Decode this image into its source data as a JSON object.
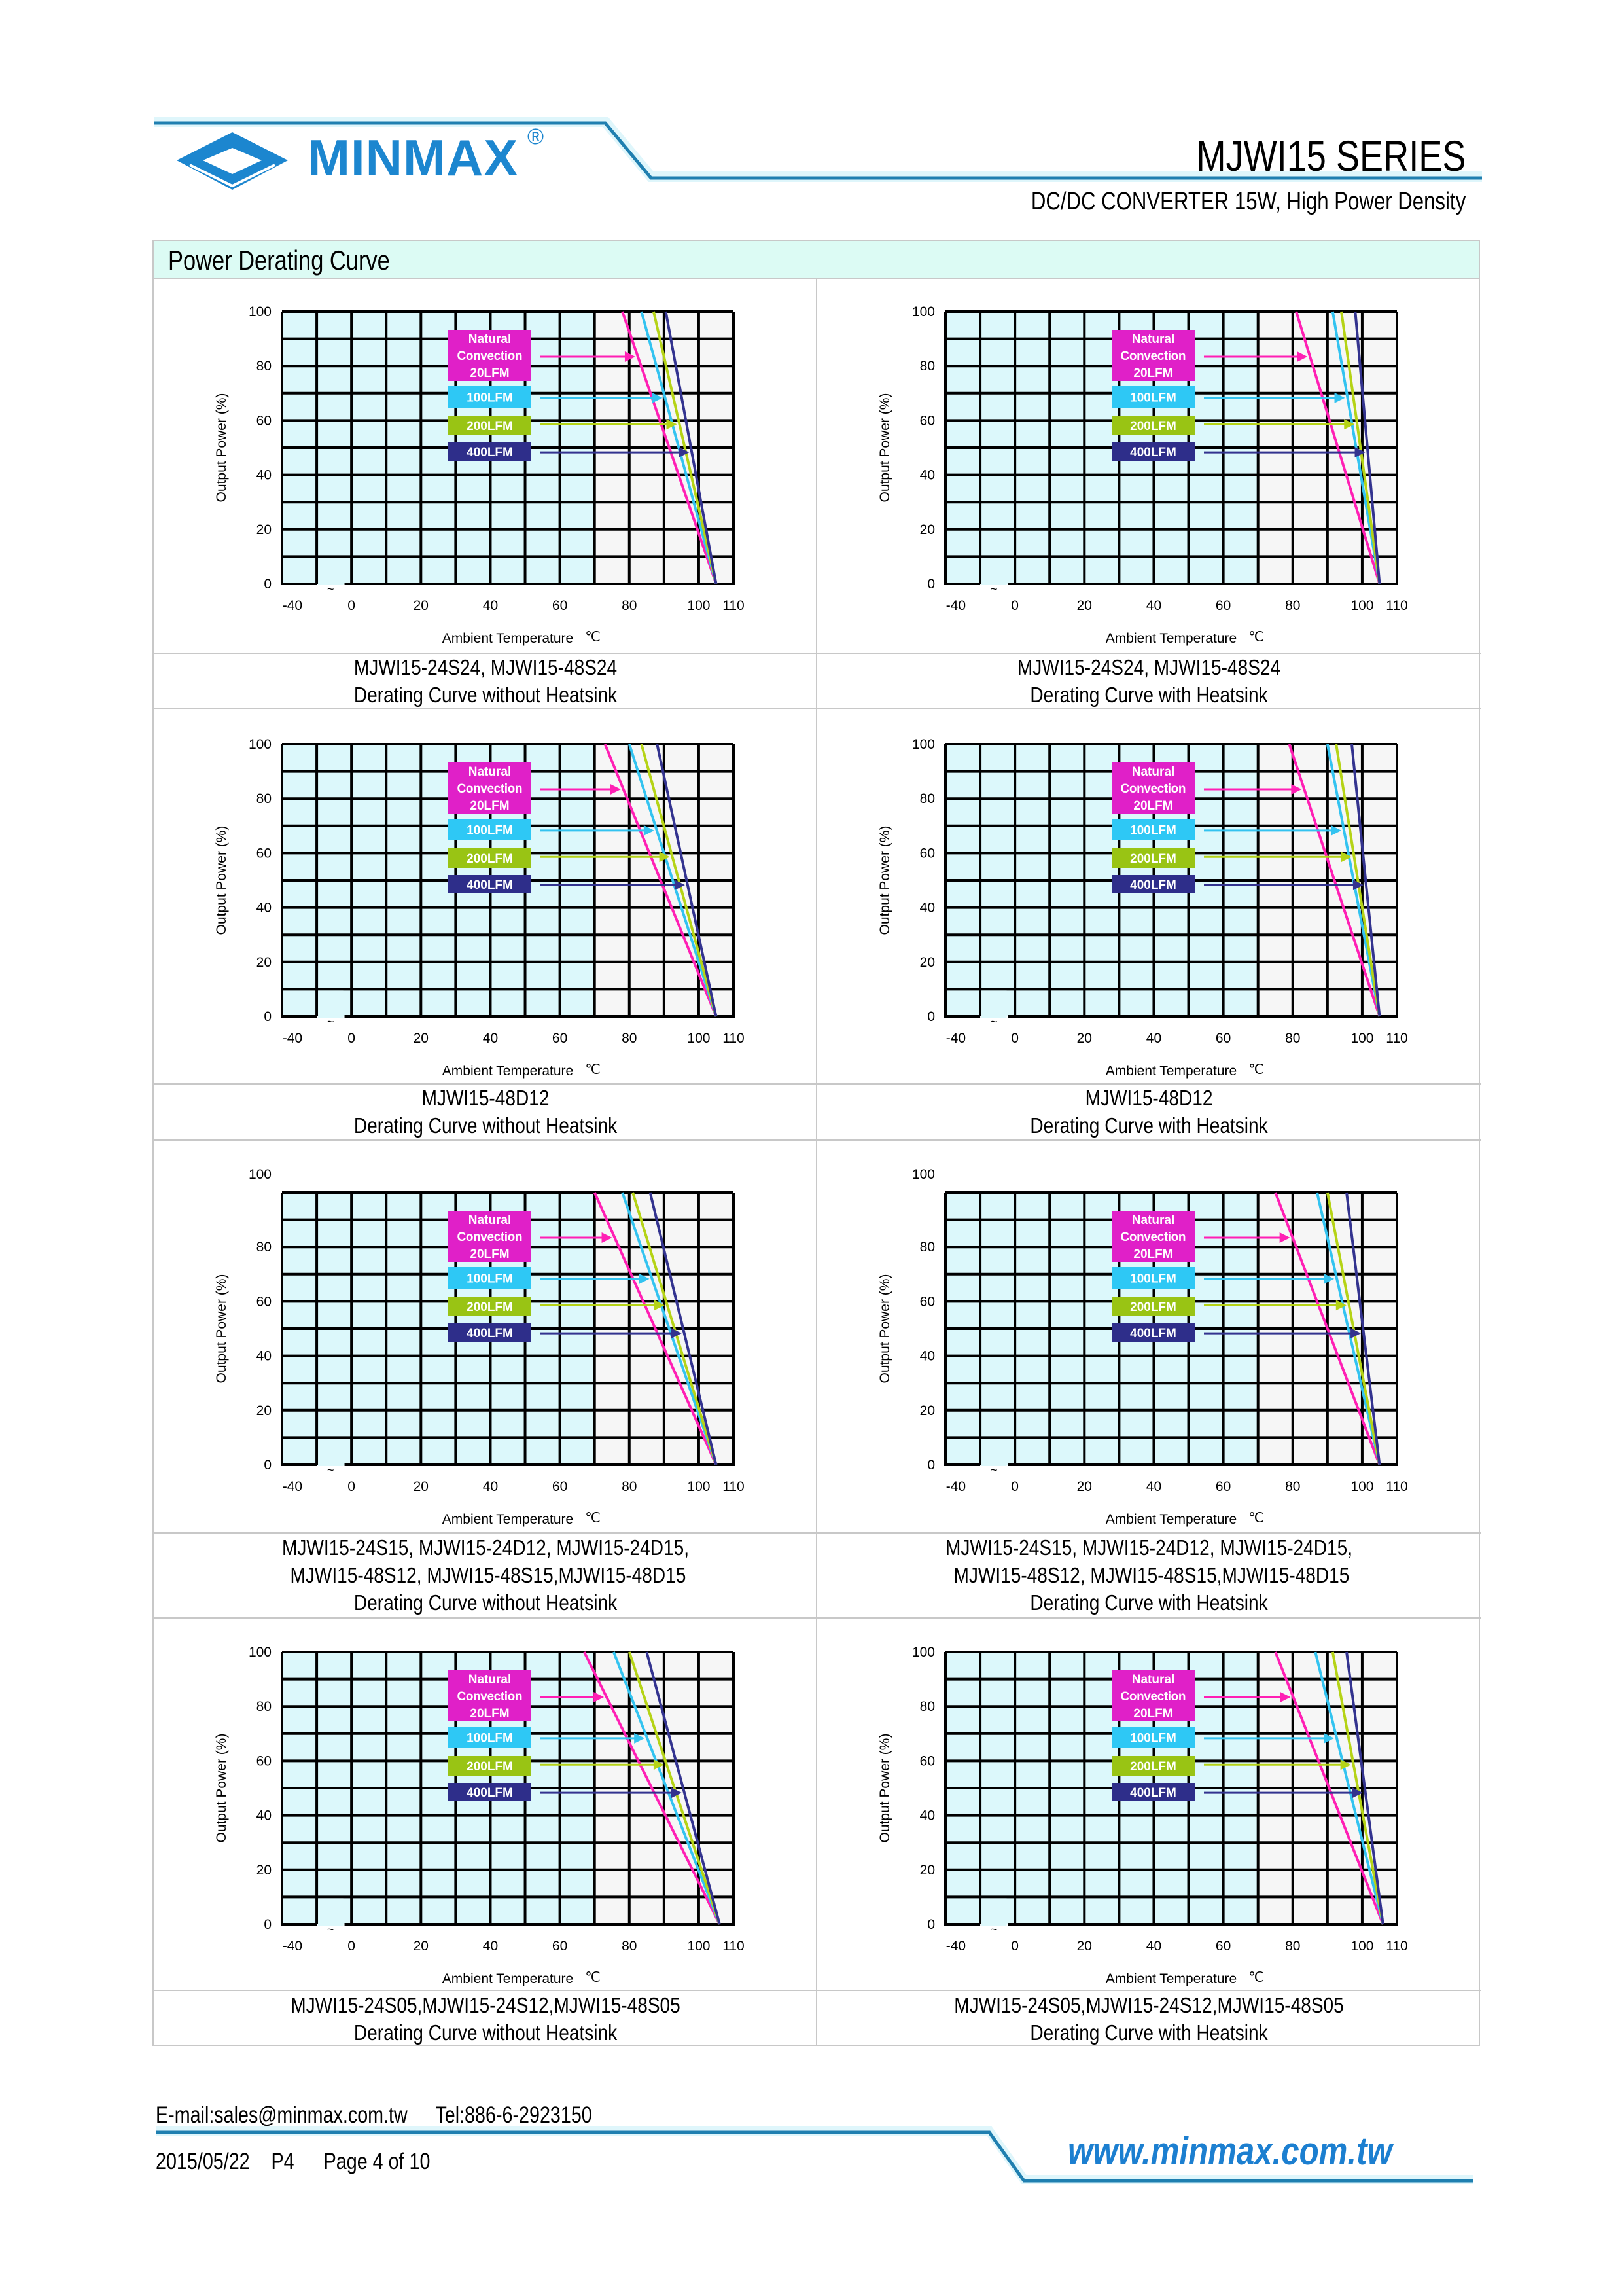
{
  "header": {
    "logo_text": "MINMAX",
    "logo_mark": "®",
    "series_title": "MJWI15 SERIES",
    "subtitle": "DC/DC CONVERTER 15W, High Power Density",
    "brand_color": "#1c86cf"
  },
  "section": {
    "title": "Power Derating Curve"
  },
  "colors": {
    "natural": "#ff1fb4",
    "lfm100": "#33c3f0",
    "lfm200": "#b5d316",
    "lfm400": "#33338f",
    "plot_fill": "#dcf8fb",
    "section_header_bg": "#dcfbf4"
  },
  "chart_data": [
    {
      "type": "line",
      "caption": [
        "MJWI15-24S24, MJWI15-48S24",
        "Derating Curve without Heatsink"
      ],
      "xlabel": "Ambient Temperature",
      "xunit": "℃",
      "ylabel": "Output Power (%)",
      "xticks": [
        "-40",
        "0",
        "20",
        "40",
        "60",
        "80",
        "100",
        "110"
      ],
      "yticks": [
        "0",
        "20",
        "40",
        "60",
        "80",
        "100"
      ],
      "xlim": [
        -40,
        110
      ],
      "ylim": [
        0,
        100
      ],
      "grid": true,
      "axis_break": "~",
      "legend": "center",
      "series": [
        {
          "name_lines": [
            "Natural",
            "Convection",
            "20LFM"
          ],
          "points": [
            [
              78,
              100
            ],
            [
              105,
              0
            ]
          ]
        },
        {
          "name_lines": [
            "100LFM"
          ],
          "points": [
            [
              83.5,
              100
            ],
            [
              105,
              0
            ]
          ]
        },
        {
          "name_lines": [
            "200LFM"
          ],
          "points": [
            [
              87,
              100
            ],
            [
              105,
              0
            ]
          ]
        },
        {
          "name_lines": [
            "400LFM"
          ],
          "points": [
            [
              90.5,
              100
            ],
            [
              105,
              0
            ]
          ]
        }
      ]
    },
    {
      "type": "line",
      "caption": [
        "MJWI15-24S24, MJWI15-48S24",
        "Derating Curve with Heatsink"
      ],
      "xlabel": "Ambient Temperature",
      "xunit": "℃",
      "ylabel": "Output Power (%)",
      "xticks": [
        "-40",
        "0",
        "20",
        "40",
        "60",
        "80",
        "100",
        "110"
      ],
      "yticks": [
        "0",
        "20",
        "40",
        "60",
        "80",
        "100"
      ],
      "xlim": [
        -40,
        110
      ],
      "ylim": [
        0,
        100
      ],
      "grid": true,
      "axis_break": "~",
      "legend": "center",
      "series": [
        {
          "name_lines": [
            "Natural",
            "Convection",
            "20LFM"
          ],
          "points": [
            [
              81,
              100
            ],
            [
              105,
              0
            ]
          ]
        },
        {
          "name_lines": [
            "100LFM"
          ],
          "points": [
            [
              91.5,
              100
            ],
            [
              105,
              0
            ]
          ]
        },
        {
          "name_lines": [
            "200LFM"
          ],
          "points": [
            [
              94,
              100
            ],
            [
              105,
              0
            ]
          ]
        },
        {
          "name_lines": [
            "400LFM"
          ],
          "points": [
            [
              98,
              100
            ],
            [
              105,
              0
            ]
          ]
        }
      ]
    },
    {
      "type": "line",
      "caption": [
        "MJWI15-48D12",
        "Derating Curve without Heatsink"
      ],
      "xlabel": "Ambient Temperature",
      "xunit": "℃",
      "ylabel": "Output Power (%)",
      "xticks": [
        "-40",
        "0",
        "20",
        "40",
        "60",
        "80",
        "100",
        "110"
      ],
      "yticks": [
        "0",
        "20",
        "40",
        "60",
        "80",
        "100"
      ],
      "xlim": [
        -40,
        110
      ],
      "ylim": [
        0,
        100
      ],
      "grid": true,
      "axis_break": "~",
      "legend": "center",
      "series": [
        {
          "name_lines": [
            "Natural",
            "Convection",
            "20LFM"
          ],
          "points": [
            [
              73,
              100
            ],
            [
              105,
              0
            ]
          ]
        },
        {
          "name_lines": [
            "100LFM"
          ],
          "points": [
            [
              80,
              100
            ],
            [
              105,
              0
            ]
          ]
        },
        {
          "name_lines": [
            "200LFM"
          ],
          "points": [
            [
              83.5,
              100
            ],
            [
              105,
              0
            ]
          ]
        },
        {
          "name_lines": [
            "400LFM"
          ],
          "points": [
            [
              88,
              100
            ],
            [
              105,
              0
            ]
          ]
        }
      ]
    },
    {
      "type": "line",
      "caption": [
        "MJWI15-48D12",
        "Derating Curve with Heatsink"
      ],
      "xlabel": "Ambient Temperature",
      "xunit": "℃",
      "ylabel": "Output Power (%)",
      "xticks": [
        "-40",
        "0",
        "20",
        "40",
        "60",
        "80",
        "100",
        "110"
      ],
      "yticks": [
        "0",
        "20",
        "40",
        "60",
        "80",
        "100"
      ],
      "xlim": [
        -40,
        110
      ],
      "ylim": [
        0,
        100
      ],
      "grid": true,
      "axis_break": "~",
      "legend": "center",
      "series": [
        {
          "name_lines": [
            "Natural",
            "Convection",
            "20LFM"
          ],
          "points": [
            [
              79,
              100
            ],
            [
              105,
              0
            ]
          ]
        },
        {
          "name_lines": [
            "100LFM"
          ],
          "points": [
            [
              90,
              100
            ],
            [
              105,
              0
            ]
          ]
        },
        {
          "name_lines": [
            "200LFM"
          ],
          "points": [
            [
              92.5,
              100
            ],
            [
              105,
              0
            ]
          ]
        },
        {
          "name_lines": [
            "400LFM"
          ],
          "points": [
            [
              97,
              100
            ],
            [
              105,
              0
            ]
          ]
        }
      ]
    },
    {
      "type": "line",
      "caption": [
        "MJWI15-24S15, MJWI15-24D12, MJWI15-24D15,",
        " MJWI15-48S12, MJWI15-48S15,MJWI15-48D15",
        "Derating Curve without Heatsink"
      ],
      "xlabel": "Ambient Temperature",
      "xunit": "℃",
      "ylabel": "Output Power (%)",
      "xticks": [
        "-40",
        "0",
        "20",
        "40",
        "60",
        "80",
        "100",
        "110"
      ],
      "yticks": [
        "0",
        "20",
        "40",
        "60",
        "80",
        "100"
      ],
      "xlim": [
        -40,
        110
      ],
      "ylim": [
        0,
        100
      ],
      "grid": true,
      "axis_break": "~",
      "legend": "center",
      "series": [
        {
          "name_lines": [
            "Natural",
            "Convection",
            "20LFM"
          ],
          "points": [
            [
              70,
              100
            ],
            [
              105,
              0
            ]
          ]
        },
        {
          "name_lines": [
            "100LFM"
          ],
          "points": [
            [
              78,
              100
            ],
            [
              105,
              0
            ]
          ]
        },
        {
          "name_lines": [
            "200LFM"
          ],
          "points": [
            [
              81,
              100
            ],
            [
              105,
              0
            ]
          ]
        },
        {
          "name_lines": [
            "400LFM"
          ],
          "points": [
            [
              86,
              100
            ],
            [
              105,
              0
            ]
          ]
        }
      ]
    },
    {
      "type": "line",
      "caption": [
        "MJWI15-24S15, MJWI15-24D12, MJWI15-24D15,",
        " MJWI15-48S12, MJWI15-48S15,MJWI15-48D15",
        "Derating Curve with Heatsink"
      ],
      "xlabel": "Ambient Temperature",
      "xunit": "℃",
      "ylabel": "Output Power (%)",
      "xticks": [
        "-40",
        "0",
        "20",
        "40",
        "60",
        "80",
        "100",
        "110"
      ],
      "yticks": [
        "0",
        "20",
        "40",
        "60",
        "80",
        "100"
      ],
      "xlim": [
        -40,
        110
      ],
      "ylim": [
        0,
        100
      ],
      "grid": true,
      "axis_break": "~",
      "legend": "center",
      "series": [
        {
          "name_lines": [
            "Natural",
            "Convection",
            "20LFM"
          ],
          "points": [
            [
              75,
              100
            ],
            [
              105,
              0
            ]
          ]
        },
        {
          "name_lines": [
            "100LFM"
          ],
          "points": [
            [
              87,
              100
            ],
            [
              105,
              0
            ]
          ]
        },
        {
          "name_lines": [
            "200LFM"
          ],
          "points": [
            [
              90,
              100
            ],
            [
              105,
              0
            ]
          ]
        },
        {
          "name_lines": [
            "400LFM"
          ],
          "points": [
            [
              95.5,
              100
            ],
            [
              105,
              0
            ]
          ]
        }
      ]
    },
    {
      "type": "line",
      "caption": [
        "MJWI15-24S05,MJWI15-24S12,MJWI15-48S05",
        "Derating Curve without Heatsink"
      ],
      "xlabel": "Ambient Temperature",
      "xunit": "℃",
      "ylabel": "Output Power (%)",
      "xticks": [
        "-40",
        "0",
        "20",
        "40",
        "60",
        "80",
        "100",
        "110"
      ],
      "yticks": [
        "0",
        "20",
        "40",
        "60",
        "80",
        "100"
      ],
      "xlim": [
        -40,
        110
      ],
      "ylim": [
        0,
        100
      ],
      "grid": true,
      "axis_break": "~",
      "legend": "center",
      "series": [
        {
          "name_lines": [
            "Natural",
            "Convection",
            "20LFM"
          ],
          "points": [
            [
              67,
              100
            ],
            [
              106,
              0
            ]
          ]
        },
        {
          "name_lines": [
            "100LFM"
          ],
          "points": [
            [
              75.5,
              100
            ],
            [
              106,
              0
            ]
          ]
        },
        {
          "name_lines": [
            "200LFM"
          ],
          "points": [
            [
              80,
              100
            ],
            [
              106,
              0
            ]
          ]
        },
        {
          "name_lines": [
            "400LFM"
          ],
          "points": [
            [
              85,
              100
            ],
            [
              106,
              0
            ]
          ]
        }
      ]
    },
    {
      "type": "line",
      "caption": [
        "MJWI15-24S05,MJWI15-24S12,MJWI15-48S05",
        "Derating Curve with Heatsink"
      ],
      "xlabel": "Ambient Temperature",
      "xunit": "℃",
      "ylabel": "Output Power (%)",
      "xticks": [
        "-40",
        "0",
        "20",
        "40",
        "60",
        "80",
        "100",
        "110"
      ],
      "yticks": [
        "0",
        "20",
        "40",
        "60",
        "80",
        "100"
      ],
      "xlim": [
        -40,
        110
      ],
      "ylim": [
        0,
        100
      ],
      "grid": true,
      "axis_break": "~",
      "legend": "center",
      "series": [
        {
          "name_lines": [
            "Natural",
            "Convection",
            "20LFM"
          ],
          "points": [
            [
              75,
              100
            ],
            [
              106,
              0
            ]
          ]
        },
        {
          "name_lines": [
            "100LFM"
          ],
          "points": [
            [
              86.5,
              100
            ],
            [
              106,
              0
            ]
          ]
        },
        {
          "name_lines": [
            "200LFM"
          ],
          "points": [
            [
              91.5,
              100
            ],
            [
              106,
              0
            ]
          ]
        },
        {
          "name_lines": [
            "400LFM"
          ],
          "points": [
            [
              95.5,
              100
            ],
            [
              106,
              0
            ]
          ]
        }
      ]
    }
  ],
  "footer": {
    "email": "E-mail:sales@minmax.com.tw",
    "tel": "Tel:886-6-2923150",
    "date": "2015/05/22",
    "page_code": "P4",
    "page_of": "Page 4 of 10",
    "website": "www.minmax.com.tw"
  }
}
